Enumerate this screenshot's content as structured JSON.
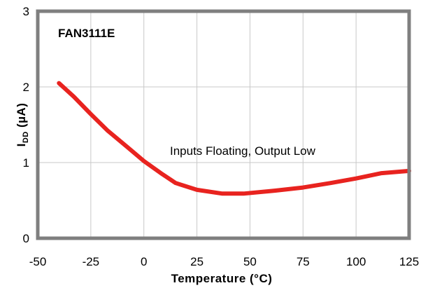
{
  "chart_data": {
    "type": "line",
    "title": "",
    "xlabel": "Temperature (°C)",
    "ylabel_main": "I",
    "ylabel_sub": "DD",
    "ylabel_unit": " (µA)",
    "xlim": [
      -50,
      125
    ],
    "ylim": [
      0,
      3
    ],
    "x_ticks": [
      -50,
      -25,
      0,
      25,
      50,
      75,
      100,
      125
    ],
    "y_ticks": [
      0,
      1,
      2,
      3
    ],
    "grid": true,
    "annotations": {
      "part": "FAN3111E",
      "condition": "Inputs Floating, Output Low"
    },
    "series": [
      {
        "color": "#e8231f",
        "x": [
          -40,
          -33,
          -25,
          -17,
          -8,
          0,
          8,
          15,
          25,
          37,
          47,
          62,
          75,
          88,
          100,
          112,
          125
        ],
        "y": [
          2.05,
          1.87,
          1.64,
          1.42,
          1.21,
          1.02,
          0.86,
          0.73,
          0.64,
          0.59,
          0.59,
          0.63,
          0.67,
          0.73,
          0.79,
          0.86,
          0.89
        ]
      }
    ]
  }
}
